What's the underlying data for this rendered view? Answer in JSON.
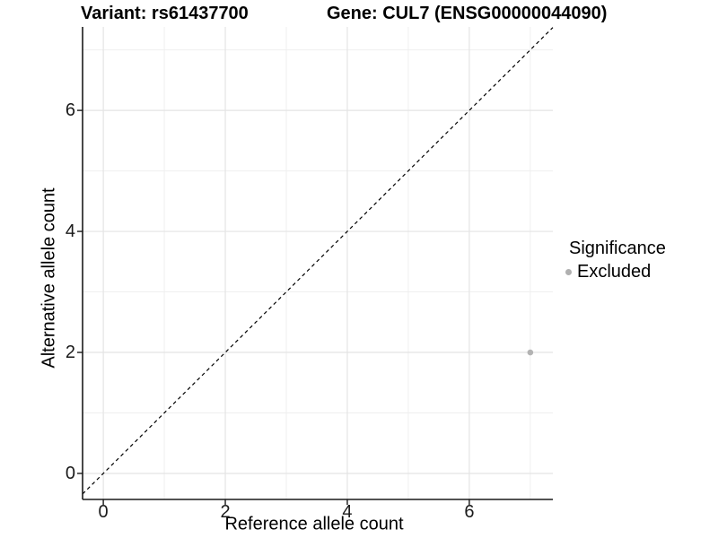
{
  "titles": {
    "variant": "Variant: rs61437700",
    "gene": "Gene: CUL7 (ENSG00000044090)"
  },
  "axes": {
    "x": {
      "label": "Reference allele count",
      "ticks": [
        0,
        2,
        4,
        6
      ],
      "minor_gridlines": [
        1,
        3,
        5,
        7
      ]
    },
    "y": {
      "label": "Alternative allele count",
      "ticks": [
        0,
        2,
        4,
        6
      ],
      "minor_gridlines": [
        1,
        3,
        5,
        7
      ]
    }
  },
  "legend": {
    "title": "Significance",
    "items": [
      {
        "label": "Excluded",
        "color": "#b0b0b0"
      }
    ]
  },
  "colors": {
    "background": "#ffffff",
    "grid_major": "#e4e4e4",
    "grid_minor": "#efefef",
    "axis_line": "#1a1a1a",
    "tick_mark": "#1a1a1a",
    "identity_line": "#000000",
    "point": "#b3b3b3",
    "text": "#000000"
  },
  "chart_data": {
    "type": "scatter",
    "title": "Variant: rs61437700 | Gene: CUL7 (ENSG00000044090)",
    "xlabel": "Reference allele count",
    "ylabel": "Alternative allele count",
    "xlim": [
      -0.34,
      7.37
    ],
    "ylim": [
      -0.43,
      7.38
    ],
    "grid": "on",
    "legend_position": "right",
    "legend_title": "Significance",
    "series": [
      {
        "name": "Excluded",
        "color": "#b3b3b3",
        "points": [
          {
            "x": 7,
            "y": 2
          }
        ]
      }
    ],
    "reference_line": {
      "type": "identity y=x",
      "style": "dashed",
      "color": "#000000",
      "slope": 1,
      "intercept": 0
    }
  }
}
